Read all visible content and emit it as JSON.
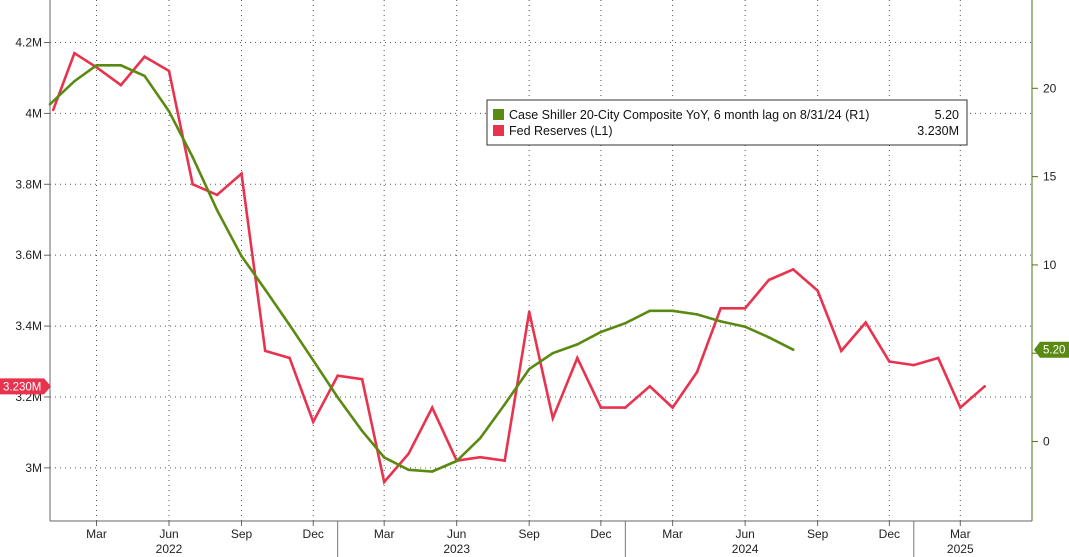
{
  "chart_data": {
    "type": "line",
    "grid": true,
    "legend_placement": "top-center",
    "x_tick_labels": [
      {
        "date": "2022-03-01",
        "label": "Mar"
      },
      {
        "date": "2022-06-01",
        "label": "Jun"
      },
      {
        "date": "2022-09-01",
        "label": "Sep"
      },
      {
        "date": "2022-12-01",
        "label": "Dec"
      },
      {
        "date": "2023-03-01",
        "label": "Mar"
      },
      {
        "date": "2023-06-01",
        "label": "Jun"
      },
      {
        "date": "2023-09-01",
        "label": "Sep"
      },
      {
        "date": "2023-12-01",
        "label": "Dec"
      },
      {
        "date": "2024-03-01",
        "label": "Mar"
      },
      {
        "date": "2024-06-01",
        "label": "Jun"
      },
      {
        "date": "2024-09-01",
        "label": "Sep"
      },
      {
        "date": "2024-12-01",
        "label": "Dec"
      },
      {
        "date": "2025-03-01",
        "label": "Mar"
      }
    ],
    "year_labels": [
      {
        "date": "2022-06-01",
        "label": "2022"
      },
      {
        "date": "2023-06-01",
        "label": "2023"
      },
      {
        "date": "2024-06-01",
        "label": "2024"
      },
      {
        "date": "2025-03-01",
        "label": "2025"
      }
    ],
    "year_dividers": [
      "2023-01-01",
      "2024-01-01",
      "2025-01-01"
    ],
    "x_range": [
      "2022-01-01",
      "2025-05-31"
    ],
    "left_axis": {
      "ticks": [
        3000000,
        3200000,
        3400000,
        3600000,
        3800000,
        4000000,
        4200000
      ],
      "tick_labels": [
        "3M",
        "3.2M",
        "3.4M",
        "3.6M",
        "3.8M",
        "4M",
        "4.2M"
      ],
      "ylim": [
        2850000,
        4320000
      ]
    },
    "right_axis": {
      "ticks": [
        0,
        5,
        10,
        15,
        20
      ],
      "tick_labels": [
        "0",
        "5",
        "10",
        "15",
        "20"
      ],
      "ylim": [
        -4.5,
        25
      ]
    },
    "legend": [
      {
        "label": "Case Shiller 20-City Composite YoY, 6 month lag on 8/31/24 (R1)",
        "value": "5.20",
        "color": "#5b8a12"
      },
      {
        "label": "Fed Reserves (L1)",
        "value": "3.230M",
        "color": "#e8334f"
      }
    ],
    "last_value_badges": [
      {
        "series": "Fed Reserves (L1)",
        "axis": "left",
        "text": "3.230M",
        "value": 3230000,
        "color": "#e8334f"
      },
      {
        "series": "Case Shiller 20-City Composite YoY, 6 month lag on 8/31/24 (R1)",
        "axis": "right",
        "text": "5.20",
        "value": 5.2,
        "color": "#5b8a12"
      }
    ],
    "series": [
      {
        "name": "Fed Reserves (L1)",
        "axis": "left",
        "color": "#e8334f",
        "x": [
          "2022-01-05",
          "2022-02-01",
          "2022-03-01",
          "2022-04-01",
          "2022-05-01",
          "2022-06-01",
          "2022-07-01",
          "2022-08-01",
          "2022-09-01",
          "2022-10-01",
          "2022-11-01",
          "2022-12-01",
          "2023-01-01",
          "2023-02-01",
          "2023-03-01",
          "2023-04-01",
          "2023-05-01",
          "2023-06-01",
          "2023-07-01",
          "2023-08-01",
          "2023-09-01",
          "2023-10-01",
          "2023-11-01",
          "2023-12-01",
          "2024-01-01",
          "2024-02-01",
          "2024-03-01",
          "2024-04-01",
          "2024-05-01",
          "2024-06-01",
          "2024-07-01",
          "2024-08-01",
          "2024-09-01",
          "2024-10-01",
          "2024-11-01",
          "2024-12-01",
          "2025-01-01",
          "2025-02-01",
          "2025-03-01",
          "2025-04-01"
        ],
        "values": [
          4010000,
          4170000,
          4130000,
          4080000,
          4160000,
          4120000,
          3800000,
          3770000,
          3830000,
          3330000,
          3310000,
          3130000,
          3260000,
          3250000,
          2960000,
          3040000,
          3170000,
          3020000,
          3030000,
          3020000,
          3440000,
          3140000,
          3310000,
          3170000,
          3170000,
          3230000,
          3170000,
          3270000,
          3450000,
          3450000,
          3530000,
          3560000,
          3500000,
          3330000,
          3410000,
          3300000,
          3290000,
          3310000,
          3170000,
          3230000
        ]
      },
      {
        "name": "Case Shiller 20-City Composite YoY, 6 month lag on 8/31/24 (R1)",
        "axis": "right",
        "color": "#5b8a12",
        "x": [
          "2022-01-01",
          "2022-02-01",
          "2022-03-01",
          "2022-04-01",
          "2022-05-01",
          "2022-06-01",
          "2022-07-01",
          "2022-08-01",
          "2022-09-01",
          "2022-10-01",
          "2022-11-01",
          "2022-12-01",
          "2023-01-01",
          "2023-02-01",
          "2023-03-01",
          "2023-04-01",
          "2023-05-01",
          "2023-06-01",
          "2023-07-01",
          "2023-08-01",
          "2023-09-01",
          "2023-10-01",
          "2023-11-01",
          "2023-12-01",
          "2024-01-01",
          "2024-02-01",
          "2024-03-01",
          "2024-04-01",
          "2024-05-01",
          "2024-06-01",
          "2024-07-01",
          "2024-08-01"
        ],
        "values": [
          19.1,
          20.4,
          21.3,
          21.3,
          20.7,
          18.7,
          16.1,
          13.1,
          10.5,
          8.6,
          6.6,
          4.6,
          2.5,
          0.6,
          -0.9,
          -1.6,
          -1.7,
          -1.1,
          0.2,
          2.1,
          4.1,
          5.0,
          5.5,
          6.2,
          6.7,
          7.4,
          7.4,
          7.2,
          6.8,
          6.5,
          5.9,
          5.2
        ]
      }
    ]
  }
}
